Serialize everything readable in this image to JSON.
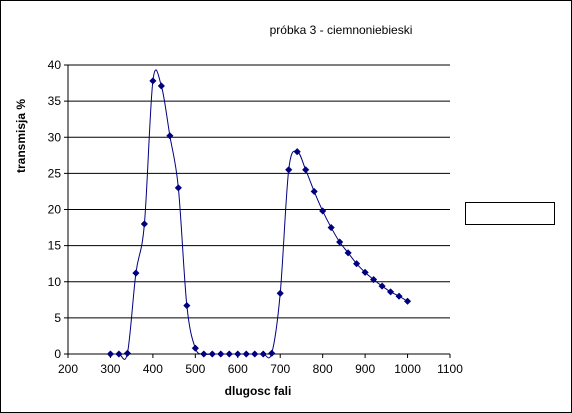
{
  "chart_data": {
    "type": "line",
    "title": "próbka 3 - ciemnoniebieski",
    "xlabel": "dlugosc fali",
    "ylabel": "transmisja %",
    "xlim": [
      200,
      1100
    ],
    "ylim": [
      0,
      40
    ],
    "x_ticks": [
      200,
      300,
      400,
      500,
      600,
      700,
      800,
      900,
      1000,
      1100
    ],
    "y_ticks": [
      0,
      5,
      10,
      15,
      20,
      25,
      30,
      35,
      40
    ],
    "grid": "horizontal",
    "legend": "right",
    "colors": {
      "series": "#00007f",
      "grid": "#000000",
      "axis": "#000000"
    },
    "series": [
      {
        "x": [
          300,
          320,
          340,
          360,
          380,
          400,
          420,
          440,
          460,
          480,
          500,
          520,
          540,
          560,
          580,
          600,
          620,
          640,
          660,
          680,
          700,
          720,
          740,
          760,
          780,
          800,
          820,
          840,
          860,
          880,
          900,
          920,
          940,
          960,
          980,
          1000
        ],
        "values": [
          0,
          0,
          0.1,
          11.2,
          18,
          37.8,
          37.1,
          30.2,
          23,
          6.7,
          0.8,
          0,
          0,
          0,
          0,
          0,
          0,
          0,
          0,
          0.1,
          8.4,
          25.5,
          28,
          25.5,
          22.5,
          19.8,
          17.5,
          15.5,
          14,
          12.5,
          11.3,
          10.3,
          9.4,
          8.6,
          8,
          7.3
        ]
      }
    ]
  }
}
